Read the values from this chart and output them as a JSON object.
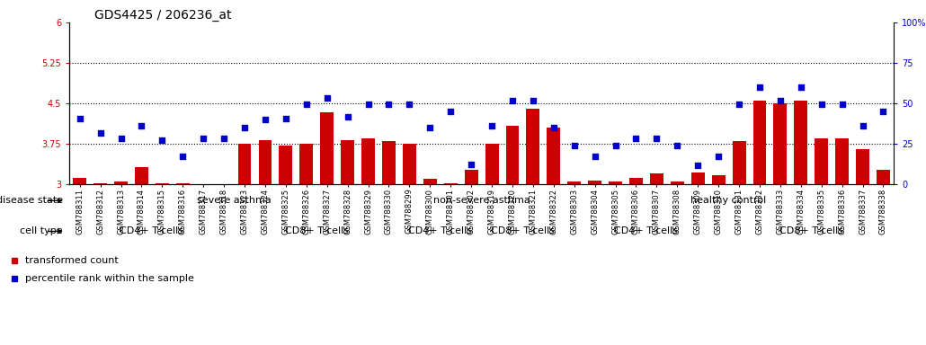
{
  "title": "GDS4425 / 206236_at",
  "samples": [
    "GSM788311",
    "GSM788312",
    "GSM788313",
    "GSM788314",
    "GSM788315",
    "GSM788316",
    "GSM788317",
    "GSM788318",
    "GSM788323",
    "GSM788324",
    "GSM788325",
    "GSM788326",
    "GSM788327",
    "GSM788328",
    "GSM788329",
    "GSM788330",
    "GSM788299",
    "GSM788300",
    "GSM788301",
    "GSM788302",
    "GSM788319",
    "GSM788320",
    "GSM788321",
    "GSM788322",
    "GSM788303",
    "GSM788304",
    "GSM788305",
    "GSM788306",
    "GSM788307",
    "GSM788308",
    "GSM788309",
    "GSM788310",
    "GSM788331",
    "GSM788332",
    "GSM788333",
    "GSM788334",
    "GSM788335",
    "GSM788336",
    "GSM788337",
    "GSM788338"
  ],
  "bar_values": [
    3.12,
    3.02,
    3.06,
    3.32,
    3.03,
    3.02,
    3.01,
    3.01,
    3.75,
    3.82,
    3.72,
    3.75,
    4.33,
    3.82,
    3.85,
    3.8,
    3.75,
    3.1,
    3.02,
    3.27,
    3.75,
    4.08,
    4.4,
    4.05,
    3.05,
    3.08,
    3.05,
    3.12,
    3.2,
    3.05,
    3.22,
    3.18,
    3.8,
    4.55,
    4.5,
    4.55,
    3.85,
    3.85,
    3.65,
    3.28
  ],
  "scatter_values": [
    4.22,
    3.95,
    3.85,
    4.08,
    3.82,
    3.52,
    3.85,
    3.85,
    4.05,
    4.2,
    4.22,
    4.48,
    4.6,
    4.25,
    4.48,
    4.48,
    4.48,
    4.05,
    4.35,
    3.38,
    4.08,
    4.55,
    4.55,
    4.05,
    3.72,
    3.52,
    3.72,
    3.85,
    3.85,
    3.72,
    3.35,
    3.52,
    4.48,
    4.8,
    4.55,
    4.8,
    4.48,
    4.48,
    4.08,
    4.35
  ],
  "ylim_left": [
    3,
    6
  ],
  "yticks_left": [
    3,
    3.75,
    4.5,
    5.25,
    6
  ],
  "ytick_labels_left": [
    "3",
    "3.75",
    "4.5",
    "5.25",
    "6"
  ],
  "ylim_right": [
    0,
    100
  ],
  "yticks_right": [
    0,
    25,
    50,
    75,
    100
  ],
  "ytick_labels_right": [
    "0",
    "25",
    "50",
    "75",
    "100%"
  ],
  "hlines": [
    3.75,
    4.5,
    5.25
  ],
  "bar_color": "#cc0000",
  "scatter_color": "#0000cc",
  "disease_state_groups": [
    {
      "label": "severe asthma",
      "start": 0,
      "end": 15,
      "color": "#ccffcc"
    },
    {
      "label": "non-severe asthma",
      "start": 16,
      "end": 23,
      "color": "#88ee88"
    },
    {
      "label": "healthy control",
      "start": 24,
      "end": 39,
      "color": "#44cc44"
    }
  ],
  "cell_type_groups": [
    {
      "label": "CD4+ T-cells",
      "start": 0,
      "end": 7,
      "color": "#ffaaff"
    },
    {
      "label": "CD8+ T-cells",
      "start": 8,
      "end": 15,
      "color": "#ee55ee"
    },
    {
      "label": "CD4+ T-cells",
      "start": 16,
      "end": 19,
      "color": "#ffaaff"
    },
    {
      "label": "CD8+ T-cells",
      "start": 20,
      "end": 23,
      "color": "#ee55ee"
    },
    {
      "label": "CD4+ T-cells",
      "start": 24,
      "end": 31,
      "color": "#ffaaff"
    },
    {
      "label": "CD8+ T-cells",
      "start": 32,
      "end": 39,
      "color": "#ee55ee"
    }
  ],
  "legend_items": [
    {
      "label": "transformed count",
      "color": "#cc0000"
    },
    {
      "label": "percentile rank within the sample",
      "color": "#0000cc"
    }
  ],
  "row_labels": [
    "disease state",
    "cell type"
  ],
  "background_color": "#ffffff",
  "title_fontsize": 10,
  "tick_fontsize": 7,
  "label_fontsize": 8,
  "sample_fontsize": 6,
  "row_label_fontsize": 8,
  "group_label_fontsize": 8
}
